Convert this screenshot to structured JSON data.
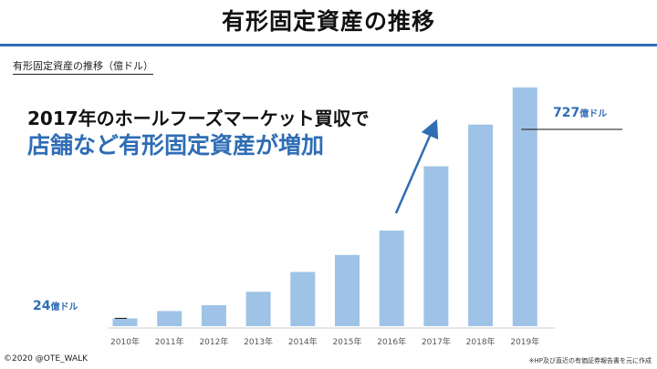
{
  "slide": {
    "title": "有形固定資産の推移",
    "subtitle": "有形固定資産の推移（億ドル）",
    "headline_line1": "2017年のホールフーズマーケット買収で",
    "headline_line2": "店舗など有形固定資産が増加",
    "callout_first": {
      "value": "24",
      "unit": "億ドル"
    },
    "callout_last": {
      "value": "727",
      "unit": "億ドル"
    },
    "copyright": "©2020 @OTE_WALK",
    "source": "※HP及び直近の有価証券報告書を元に作成",
    "accent_color": "#2f6db5",
    "bar_color": "#9fc3e6"
  },
  "chart_data": {
    "type": "bar",
    "categories": [
      "2010年",
      "2011年",
      "2012年",
      "2013年",
      "2014年",
      "2015年",
      "2016年",
      "2017年",
      "2018年",
      "2019年"
    ],
    "values": [
      24,
      46,
      64,
      105,
      165,
      217,
      291,
      487,
      614,
      727
    ],
    "ylabel": "",
    "xlabel": "",
    "ylim": [
      0,
      727
    ],
    "grid": false,
    "legend": "none"
  }
}
